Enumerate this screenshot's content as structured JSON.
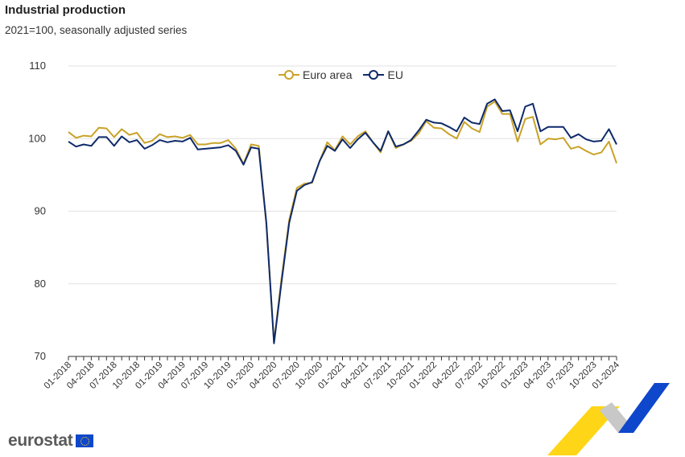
{
  "header": {
    "title": "Industrial production",
    "subtitle": "2021=100, seasonally adjusted series"
  },
  "branding": {
    "logo_text": "eurostat"
  },
  "colors": {
    "euro_area": "#c9a227",
    "eu": "#0e2a6b",
    "grid": "#e2e2e2",
    "axis": "#333333",
    "brand_yellow": "#ffd617",
    "brand_blue": "#0e47cb",
    "brand_grey": "#c8c8c8"
  },
  "chart_data": {
    "type": "line",
    "title": "Industrial production",
    "subtitle": "2021=100, seasonally adjusted series",
    "xlabel": "",
    "ylabel": "",
    "ylim": [
      70,
      110
    ],
    "yticks": [
      70,
      80,
      90,
      100,
      110
    ],
    "grid": true,
    "legend_position": "top-center",
    "x_tick_labels": [
      "01-2018",
      "04-2018",
      "07-2018",
      "10-2018",
      "01-2019",
      "04-2019",
      "07-2019",
      "10-2019",
      "01-2020",
      "04-2020",
      "07-2020",
      "10-2020",
      "01-2021",
      "04-2021",
      "07-2021",
      "10-2021",
      "01-2022",
      "04-2022",
      "07-2022",
      "10-2022",
      "01-2023",
      "04-2023",
      "07-2023",
      "10-2023",
      "01-2024"
    ],
    "x": [
      "01-2018",
      "02-2018",
      "03-2018",
      "04-2018",
      "05-2018",
      "06-2018",
      "07-2018",
      "08-2018",
      "09-2018",
      "10-2018",
      "11-2018",
      "12-2018",
      "01-2019",
      "02-2019",
      "03-2019",
      "04-2019",
      "05-2019",
      "06-2019",
      "07-2019",
      "08-2019",
      "09-2019",
      "10-2019",
      "11-2019",
      "12-2019",
      "01-2020",
      "02-2020",
      "03-2020",
      "04-2020",
      "05-2020",
      "06-2020",
      "07-2020",
      "08-2020",
      "09-2020",
      "10-2020",
      "11-2020",
      "12-2020",
      "01-2021",
      "02-2021",
      "03-2021",
      "04-2021",
      "05-2021",
      "06-2021",
      "07-2021",
      "08-2021",
      "09-2021",
      "10-2021",
      "11-2021",
      "12-2021",
      "01-2022",
      "02-2022",
      "03-2022",
      "04-2022",
      "05-2022",
      "06-2022",
      "07-2022",
      "08-2022",
      "09-2022",
      "10-2022",
      "11-2022",
      "12-2022",
      "01-2023",
      "02-2023",
      "03-2023",
      "04-2023",
      "05-2023",
      "06-2023",
      "07-2023",
      "08-2023",
      "09-2023",
      "10-2023",
      "11-2023",
      "12-2023",
      "01-2024"
    ],
    "series": [
      {
        "name": "Euro area",
        "color": "#c9a227",
        "values": [
          100.9,
          100.1,
          100.4,
          100.3,
          101.5,
          101.4,
          100.2,
          101.3,
          100.5,
          100.8,
          99.4,
          99.7,
          100.6,
          100.2,
          100.3,
          100.1,
          100.5,
          99.2,
          99.2,
          99.4,
          99.4,
          99.8,
          98.6,
          96.5,
          99.2,
          99.0,
          88.2,
          72.0,
          80.8,
          88.8,
          93.2,
          93.8,
          93.9,
          96.9,
          99.5,
          98.4,
          100.3,
          99.2,
          100.3,
          101.0,
          99.5,
          98.1,
          101.0,
          98.7,
          99.2,
          99.7,
          100.7,
          102.4,
          101.5,
          101.4,
          100.6,
          100.0,
          102.3,
          101.4,
          100.9,
          104.4,
          105.1,
          103.4,
          103.4,
          99.6,
          102.7,
          103.0,
          99.2,
          100.0,
          99.9,
          100.1,
          98.6,
          98.9,
          98.3,
          97.8,
          98.1,
          99.6,
          96.6
        ]
      },
      {
        "name": "EU",
        "color": "#0e2a6b",
        "values": [
          99.6,
          98.9,
          99.2,
          99.0,
          100.2,
          100.2,
          99.0,
          100.3,
          99.5,
          99.8,
          98.6,
          99.1,
          99.8,
          99.5,
          99.7,
          99.6,
          100.1,
          98.5,
          98.6,
          98.7,
          98.8,
          99.1,
          98.3,
          96.4,
          98.8,
          98.6,
          88.4,
          71.8,
          80.3,
          88.4,
          92.8,
          93.6,
          94.0,
          96.9,
          99.0,
          98.3,
          99.9,
          98.7,
          99.9,
          100.8,
          99.5,
          98.3,
          101.0,
          98.9,
          99.2,
          99.8,
          101.1,
          102.6,
          102.2,
          102.1,
          101.6,
          101.0,
          102.9,
          102.2,
          102.0,
          104.8,
          105.4,
          103.8,
          103.9,
          101.0,
          104.4,
          104.8,
          101.0,
          101.6,
          101.6,
          101.6,
          100.1,
          100.6,
          99.9,
          99.6,
          99.7,
          101.3,
          99.2
        ]
      }
    ]
  }
}
